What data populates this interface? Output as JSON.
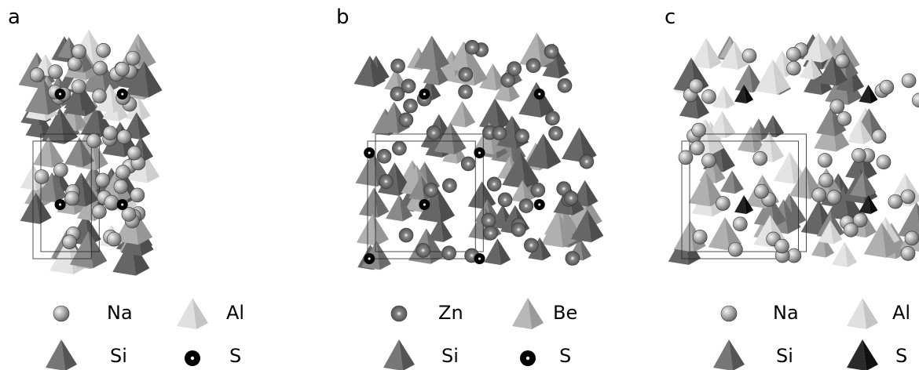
{
  "panels": [
    {
      "label": "a",
      "legend": [
        "Na",
        "Al",
        "Si",
        "S"
      ]
    },
    {
      "label": "b",
      "legend": [
        "Zn",
        "Be",
        "Si",
        "S"
      ]
    },
    {
      "label": "c",
      "legend": [
        "Na",
        "Al",
        "Si",
        "S"
      ]
    }
  ]
}
